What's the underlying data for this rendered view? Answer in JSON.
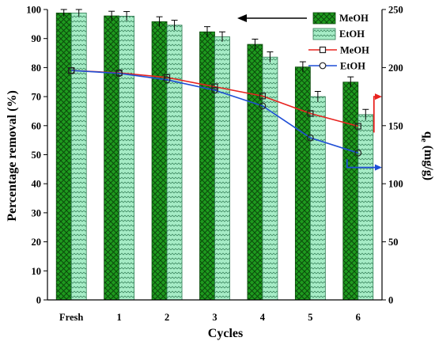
{
  "chart_data": {
    "type": "bar",
    "xlabel": "Cycles",
    "ylabel_left": "Percentage removal (%)",
    "ylabel_right_main": "q",
    "ylabel_right_sub": "e",
    "ylabel_right_unit": " (mg/g)",
    "categories": [
      "Fresh",
      "1",
      "2",
      "3",
      "4",
      "5",
      "6"
    ],
    "ylim_left": [
      0,
      100
    ],
    "yticks_left": [
      "0",
      "10",
      "20",
      "30",
      "40",
      "50",
      "60",
      "70",
      "80",
      "90",
      "100"
    ],
    "ylim_right": [
      0,
      250
    ],
    "yticks_right": [
      "0",
      "50",
      "100",
      "150",
      "200",
      "250"
    ],
    "bar_series": [
      {
        "name": "MeOH",
        "axis": "left",
        "values": [
          98.8,
          97.8,
          95.8,
          92.3,
          88.0,
          80.2,
          75.0
        ],
        "errors": [
          1.2,
          1.6,
          1.7,
          1.8,
          1.8,
          1.8,
          1.8
        ],
        "color": "#1e9a1e"
      },
      {
        "name": "EtOH",
        "axis": "left",
        "values": [
          98.8,
          97.7,
          94.6,
          90.6,
          83.6,
          70.0,
          63.8
        ],
        "errors": [
          1.2,
          1.6,
          1.7,
          1.7,
          1.8,
          1.8,
          1.8
        ],
        "color": "#9fe6c2"
      }
    ],
    "line_series": [
      {
        "name": "MeOH",
        "axis": "right",
        "marker": "square",
        "color": "#e8231f",
        "values": [
          197.5,
          195.5,
          191.5,
          183.5,
          175.5,
          160.5,
          149.5
        ]
      },
      {
        "name": "EtOH",
        "axis": "right",
        "marker": "circle",
        "color": "#1f4fd6",
        "values": [
          197.5,
          195.0,
          189.5,
          180.5,
          167.0,
          139.5,
          126.5
        ]
      }
    ],
    "legend_position": "top-right",
    "grid": false
  }
}
